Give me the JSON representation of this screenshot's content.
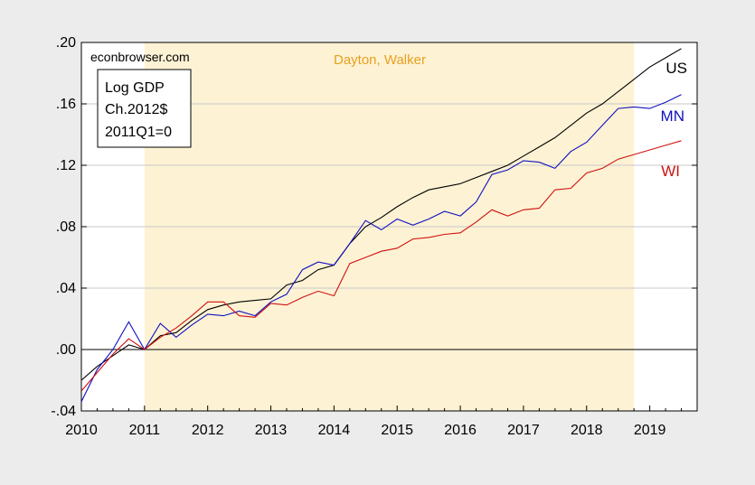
{
  "chart_data": {
    "type": "line",
    "watermark": "econbrowser.com",
    "legend_box": [
      "Log GDP",
      "Ch.2012$",
      "2011Q1=0"
    ],
    "shaded_label": "Dayton, Walker",
    "shaded_range": [
      2011.0,
      2018.75
    ],
    "xlim": [
      2010.0,
      2019.75
    ],
    "ylim": [
      -0.04,
      0.2
    ],
    "xticks": [
      2010,
      2011,
      2012,
      2013,
      2014,
      2015,
      2016,
      2017,
      2018,
      2019
    ],
    "yticks": [
      -0.04,
      0.0,
      0.04,
      0.08,
      0.12,
      0.16,
      0.2
    ],
    "ytick_labels": [
      "-.04",
      ".00",
      ".04",
      ".08",
      ".12",
      ".16",
      ".20"
    ],
    "x": [
      2010.0,
      2010.25,
      2010.5,
      2010.75,
      2011.0,
      2011.25,
      2011.5,
      2011.75,
      2012.0,
      2012.25,
      2012.5,
      2012.75,
      2013.0,
      2013.25,
      2013.5,
      2013.75,
      2014.0,
      2014.25,
      2014.5,
      2014.75,
      2015.0,
      2015.25,
      2015.5,
      2015.75,
      2016.0,
      2016.25,
      2016.5,
      2016.75,
      2017.0,
      2017.25,
      2017.5,
      2017.75,
      2018.0,
      2018.25,
      2018.5,
      2018.75,
      2019.0,
      2019.25,
      2019.5
    ],
    "series": [
      {
        "name": "US",
        "color": "#000000",
        "values": [
          -0.02,
          -0.011,
          -0.004,
          0.003,
          0.0,
          0.009,
          0.011,
          0.019,
          0.026,
          0.029,
          0.031,
          0.032,
          0.033,
          0.042,
          0.045,
          0.052,
          0.055,
          0.069,
          0.08,
          0.086,
          0.093,
          0.099,
          0.104,
          0.106,
          0.108,
          0.112,
          0.116,
          0.12,
          0.126,
          0.132,
          0.138,
          0.146,
          0.154,
          0.16,
          0.168,
          0.176,
          0.184,
          0.19,
          0.196
        ]
      },
      {
        "name": "MN",
        "color": "#1010c0",
        "values": [
          -0.034,
          -0.013,
          0.0,
          0.018,
          0.0,
          0.017,
          0.008,
          0.016,
          0.023,
          0.022,
          0.025,
          0.022,
          0.031,
          0.036,
          0.052,
          0.057,
          0.055,
          0.069,
          0.084,
          0.078,
          0.085,
          0.081,
          0.085,
          0.09,
          0.087,
          0.096,
          0.114,
          0.117,
          0.123,
          0.122,
          0.118,
          0.129,
          0.135,
          0.146,
          0.157,
          0.158,
          0.157,
          0.161,
          0.166
        ]
      },
      {
        "name": "WI",
        "color": "#d01010",
        "values": [
          -0.027,
          -0.015,
          -0.003,
          0.007,
          0.0,
          0.008,
          0.014,
          0.022,
          0.031,
          0.031,
          0.022,
          0.021,
          0.03,
          0.029,
          0.034,
          0.038,
          0.035,
          0.056,
          0.06,
          0.064,
          0.066,
          0.072,
          0.073,
          0.075,
          0.076,
          0.083,
          0.091,
          0.087,
          0.091,
          0.092,
          0.104,
          0.105,
          0.115,
          0.118,
          0.124,
          0.127,
          0.13,
          0.133,
          0.136
        ]
      }
    ]
  }
}
